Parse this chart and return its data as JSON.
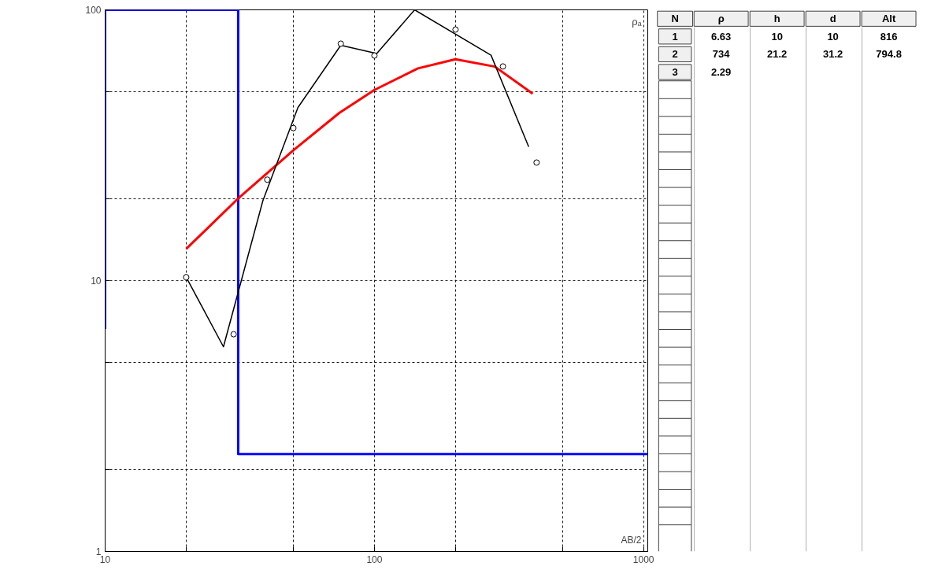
{
  "chart_data": [
    {
      "type": "line",
      "xlabel": "AB/2",
      "ylabel": "ρₐ",
      "log": "xy",
      "grid": true,
      "xlim": [
        10,
        1035
      ],
      "ylim": [
        1,
        100
      ],
      "xticks": [
        10,
        {
          "value": 20,
          "label": null
        },
        {
          "value": 50,
          "label": null
        },
        100,
        {
          "value": 200,
          "label": null
        },
        {
          "value": 500,
          "label": null
        },
        1000
      ],
      "yticks": [
        1,
        {
          "value": 2,
          "label": null
        },
        {
          "value": 5,
          "label": null
        },
        10,
        {
          "value": 20,
          "label": null
        },
        {
          "value": 50,
          "label": null
        },
        100
      ],
      "series": [
        {
          "type": "line",
          "color": "#0000ff",
          "x": [
            10,
            10,
            31.2,
            31.2,
            1035
          ],
          "values": [
            6.63,
            100,
            100,
            2.29,
            2.29
          ]
        },
        {
          "type": "line",
          "color": "#ff0000",
          "x": [
            20,
            31,
            50,
            74,
            100,
            145,
            200,
            280,
            387
          ],
          "values": [
            13.1,
            20,
            30.3,
            41.6,
            50.6,
            60.8,
            65.7,
            61.7,
            49
          ]
        },
        {
          "type": "line",
          "color": "#000000",
          "x": [
            20,
            27.5,
            38.5,
            52,
            75,
            102,
            141,
            271,
            374
          ],
          "values": [
            10.3,
            5.7,
            19.7,
            43.6,
            74,
            69,
            100,
            68,
            31.2
          ]
        },
        {
          "type": "scatter",
          "marker": "circle",
          "color": "#000000",
          "x": [
            20,
            30,
            40,
            50,
            75,
            100,
            200,
            300,
            400
          ],
          "values": [
            10.3,
            6.34,
            23.6,
            36.6,
            75,
            67.8,
            84.6,
            61.8,
            27.3
          ]
        }
      ]
    },
    {
      "type": "other",
      "categories": [
        "N",
        "ρ",
        "h",
        "d",
        "Alt"
      ],
      "y_categories": [
        "1",
        "2",
        "3",
        null,
        null,
        null,
        null,
        null,
        null,
        null,
        null,
        null,
        null,
        null,
        null,
        null,
        null,
        null,
        null,
        null,
        null,
        null,
        null,
        null,
        null,
        null,
        null,
        null,
        null
      ],
      "cell_labels": [
        [
          "6.63",
          "10",
          "10",
          "816"
        ],
        [
          "734",
          "21.2",
          "31.2",
          "794.8"
        ],
        [
          "2.29",
          null,
          null,
          null
        ],
        [
          null,
          null,
          null,
          null
        ],
        [
          null,
          null,
          null,
          null
        ],
        [
          null,
          null,
          null,
          null
        ],
        [
          null,
          null,
          null,
          null
        ],
        [
          null,
          null,
          null,
          null
        ],
        [
          null,
          null,
          null,
          null
        ],
        [
          null,
          null,
          null,
          null
        ],
        [
          null,
          null,
          null,
          null
        ],
        [
          null,
          null,
          null,
          null
        ],
        [
          null,
          null,
          null,
          null
        ],
        [
          null,
          null,
          null,
          null
        ],
        [
          null,
          null,
          null,
          null
        ],
        [
          null,
          null,
          null,
          null
        ],
        [
          null,
          null,
          null,
          null
        ],
        [
          null,
          null,
          null,
          null
        ],
        [
          null,
          null,
          null,
          null
        ],
        [
          null,
          null,
          null,
          null
        ],
        [
          null,
          null,
          null,
          null
        ],
        [
          null,
          null,
          null,
          null
        ],
        [
          null,
          null,
          null,
          null
        ],
        [
          null,
          null,
          null,
          null
        ],
        [
          null,
          null,
          null,
          null
        ],
        [
          null,
          null,
          null,
          null
        ],
        [
          null,
          null,
          null,
          null
        ],
        [
          null,
          null,
          null,
          null
        ],
        [
          null,
          null,
          null,
          null
        ]
      ]
    }
  ]
}
